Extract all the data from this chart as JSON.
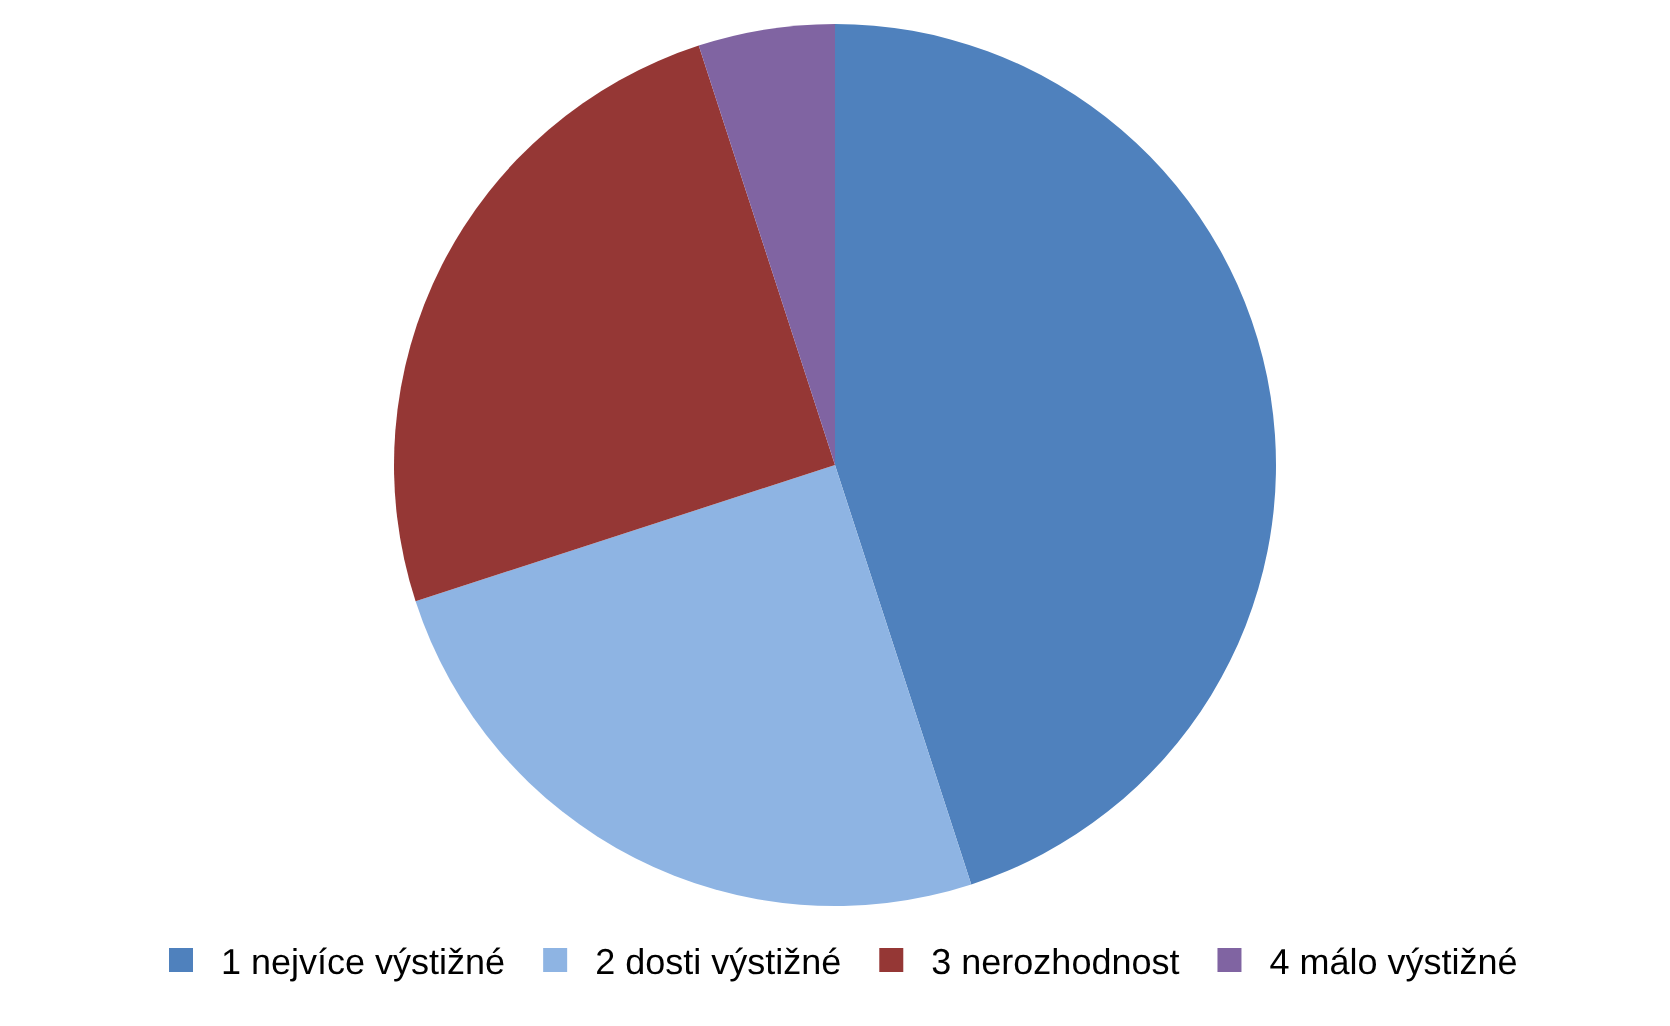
{
  "chart_data": {
    "type": "pie",
    "categories": [
      "1 nejvíce výstižné",
      "2 dosti výstižné",
      "3 nerozhodnost",
      "4 málo výstižné"
    ],
    "values": [
      45,
      25,
      25,
      5
    ],
    "colors": [
      "#4f81bd",
      "#8eb4e3",
      "#953735",
      "#8064a2"
    ],
    "legend": "bottom"
  }
}
